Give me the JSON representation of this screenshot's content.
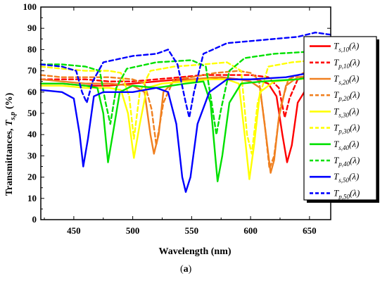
{
  "panel_label": "a",
  "chart_data": {
    "type": "line",
    "xlabel": "Wavelength (nm)",
    "ylabel_main": "Transmittances, ",
    "ylabel_symbol": "T",
    "ylabel_sub": "s,p",
    "ylabel_unit": "(%)",
    "xlim": [
      422,
      668
    ],
    "ylim": [
      0,
      100
    ],
    "x_ticks": [
      450,
      500,
      550,
      600,
      650
    ],
    "y_ticks": [
      0,
      10,
      20,
      30,
      40,
      50,
      60,
      70,
      80,
      90,
      100
    ],
    "legend_position": "right",
    "series": [
      {
        "name": "T_{s,10}(λ)",
        "sym": "T",
        "sub": "s,10",
        "arg": "(λ)",
        "color": "#ff0000",
        "dash": false,
        "x": [
          422,
          440,
          460,
          480,
          500,
          520,
          540,
          560,
          575,
          590,
          605,
          615,
          622,
          627,
          631,
          635,
          640,
          650,
          660,
          668
        ],
        "y": [
          64,
          64,
          63,
          63,
          64,
          65,
          66,
          66,
          67,
          66,
          66,
          64,
          58,
          40,
          27,
          35,
          55,
          64,
          65,
          66
        ]
      },
      {
        "name": "T_{p,10}(λ)",
        "sym": "T",
        "sub": "p,10",
        "arg": "(λ)",
        "color": "#ff0000",
        "dash": true,
        "x": [
          422,
          440,
          460,
          480,
          500,
          520,
          540,
          560,
          580,
          600,
          615,
          624,
          629,
          633,
          640,
          650,
          660,
          668
        ],
        "y": [
          66,
          66,
          66,
          65,
          65,
          66,
          67,
          68,
          68,
          68,
          67,
          62,
          48,
          57,
          66,
          68,
          67,
          68
        ]
      },
      {
        "name": "T_{s,20}(λ)",
        "sym": "T",
        "sub": "s,20",
        "arg": "(λ)",
        "color": "#f08020",
        "dash": false,
        "x": [
          422,
          440,
          460,
          480,
          500,
          510,
          515,
          518,
          522,
          526,
          535,
          550,
          570,
          590,
          600,
          608,
          613,
          617,
          620,
          624,
          630,
          640,
          660,
          668
        ],
        "y": [
          66,
          65,
          64,
          64,
          63,
          60,
          40,
          31,
          40,
          60,
          65,
          66,
          67,
          66,
          65,
          62,
          40,
          22,
          28,
          48,
          63,
          67,
          68,
          68
        ]
      },
      {
        "name": "T_{p,20}(λ)",
        "sym": "T",
        "sub": "p,20",
        "arg": "(λ)",
        "color": "#f08020",
        "dash": true,
        "x": [
          422,
          440,
          460,
          480,
          500,
          510,
          516,
          520,
          526,
          535,
          550,
          570,
          590,
          600,
          607,
          612,
          616,
          620,
          625,
          632,
          645,
          660,
          668
        ],
        "y": [
          68,
          67,
          67,
          67,
          66,
          64,
          52,
          35,
          55,
          66,
          67,
          69,
          70,
          69,
          66,
          45,
          24,
          30,
          52,
          66,
          69,
          70,
          70
        ]
      },
      {
        "name": "T_{s,30}(λ)",
        "sym": "T",
        "sub": "s,30",
        "arg": "(λ)",
        "color": "#ffff00",
        "dash": false,
        "x": [
          422,
          440,
          460,
          480,
          490,
          496,
          501,
          506,
          512,
          525,
          545,
          565,
          580,
          590,
          595,
          599,
          603,
          608,
          620,
          640,
          660,
          668
        ],
        "y": [
          63,
          63,
          62,
          62,
          61,
          50,
          29,
          45,
          62,
          64,
          65,
          66,
          66,
          64,
          40,
          19,
          35,
          60,
          65,
          66,
          67,
          67
        ]
      },
      {
        "name": "T_{p,30}(λ)",
        "sym": "T",
        "sub": "p,30",
        "arg": "(λ)",
        "color": "#ffff00",
        "dash": true,
        "x": [
          422,
          440,
          460,
          480,
          490,
          497,
          501,
          506,
          515,
          535,
          560,
          580,
          592,
          597,
          601,
          606,
          615,
          635,
          655,
          668
        ],
        "y": [
          72,
          71,
          70,
          70,
          69,
          58,
          38,
          60,
          70,
          72,
          73,
          74,
          70,
          40,
          31,
          55,
          72,
          74,
          75,
          75
        ]
      },
      {
        "name": "T_{s,40}(λ)",
        "sym": "T",
        "sub": "s,40",
        "arg": "(λ)",
        "color": "#00e000",
        "dash": false,
        "x": [
          422,
          440,
          460,
          470,
          475,
          479,
          483,
          489,
          500,
          520,
          545,
          560,
          566,
          570,
          572,
          576,
          582,
          592,
          610,
          640,
          660,
          668
        ],
        "y": [
          64,
          64,
          63,
          62,
          50,
          27,
          40,
          60,
          63,
          62,
          64,
          65,
          55,
          30,
          18,
          30,
          55,
          64,
          65,
          66,
          68,
          68
        ]
      },
      {
        "name": "T_{p,40}(λ)",
        "sym": "T",
        "sub": "p,40",
        "arg": "(λ)",
        "color": "#00e000",
        "dash": true,
        "x": [
          422,
          440,
          460,
          472,
          477,
          481,
          486,
          495,
          520,
          550,
          562,
          567,
          571,
          575,
          582,
          595,
          620,
          650,
          660,
          668
        ],
        "y": [
          73,
          73,
          72,
          70,
          55,
          45,
          62,
          71,
          74,
          75,
          72,
          55,
          40,
          52,
          70,
          76,
          78,
          79,
          80,
          80
        ]
      },
      {
        "name": "T_{s,50}(λ)",
        "sym": "T",
        "sub": "s,50",
        "arg": "(λ)",
        "color": "#0000ff",
        "dash": false,
        "x": [
          422,
          440,
          450,
          455,
          458,
          462,
          467,
          475,
          500,
          520,
          530,
          537,
          542,
          545,
          549,
          555,
          565,
          580,
          600,
          630,
          650,
          668
        ],
        "y": [
          61,
          60,
          57,
          40,
          25,
          38,
          58,
          60,
          60,
          62,
          60,
          45,
          20,
          13,
          20,
          45,
          60,
          66,
          66,
          67,
          69,
          70
        ]
      },
      {
        "name": "T_{p,50}(λ)",
        "sym": "T",
        "sub": "p,50",
        "arg": "(λ)",
        "color": "#0000ff",
        "dash": true,
        "x": [
          422,
          440,
          452,
          457,
          461,
          466,
          475,
          500,
          520,
          530,
          538,
          545,
          548,
          552,
          560,
          580,
          600,
          620,
          640,
          655,
          668
        ],
        "y": [
          73,
          72,
          70,
          60,
          55,
          65,
          74,
          77,
          78,
          80,
          73,
          55,
          48,
          60,
          78,
          83,
          84,
          85,
          86,
          88,
          87
        ]
      }
    ]
  }
}
